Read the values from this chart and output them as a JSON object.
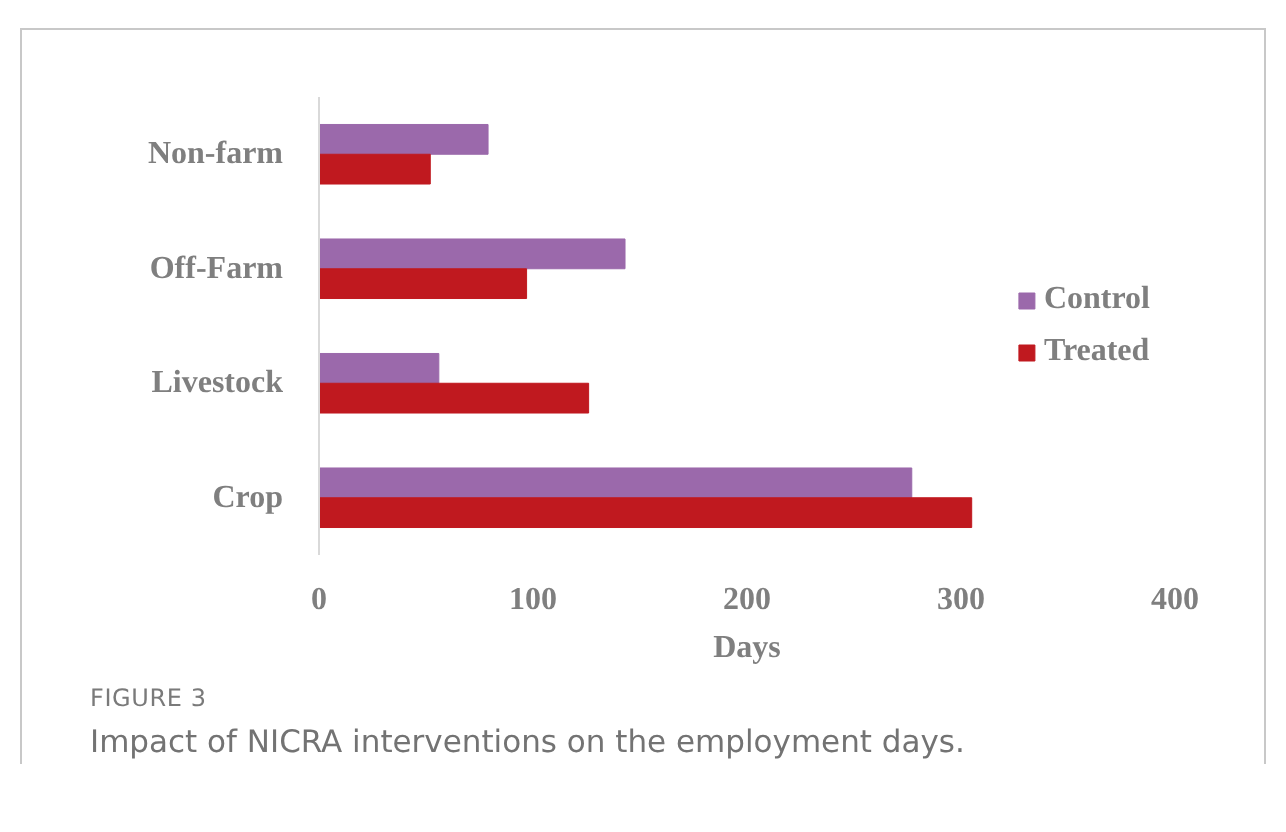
{
  "chart_data": {
    "type": "bar",
    "orientation": "horizontal",
    "categories": [
      "Non-farm",
      "Off-Farm",
      "Livestock",
      "Crop"
    ],
    "series": [
      {
        "name": "Control",
        "color": "#9b69ab",
        "values": [
          79,
          143,
          56,
          277
        ]
      },
      {
        "name": "Treated",
        "color": "#c0191f",
        "values": [
          52,
          97,
          126,
          305
        ]
      }
    ],
    "xlabel": "Days",
    "xlim": [
      0,
      400
    ],
    "xticks": [
      0,
      100,
      200,
      300,
      400
    ],
    "grid": false,
    "legend": "right",
    "annotations": [
      "FIGURE 3",
      "Impact of NICRA interventions on the employment days."
    ]
  }
}
